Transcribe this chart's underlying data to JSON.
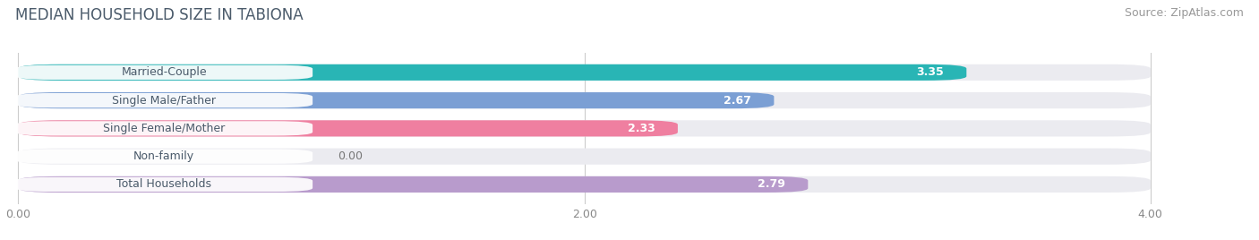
{
  "title": "MEDIAN HOUSEHOLD SIZE IN TABIONA",
  "source": "Source: ZipAtlas.com",
  "categories": [
    "Married-Couple",
    "Single Male/Father",
    "Single Female/Mother",
    "Non-family",
    "Total Households"
  ],
  "values": [
    3.35,
    2.67,
    2.33,
    0.0,
    2.79
  ],
  "bar_colors": [
    "#29b5b5",
    "#7b9fd4",
    "#ef7fa0",
    "#f5c9a0",
    "#b89bcc"
  ],
  "bar_bg_color": "#ebebf0",
  "xlim_data": [
    0,
    4.0
  ],
  "xticks": [
    0.0,
    2.0,
    4.0
  ],
  "title_color": "#4a5a6a",
  "source_color": "#999999",
  "title_fontsize": 12,
  "source_fontsize": 9,
  "bar_label_fontsize": 9,
  "category_fontsize": 9,
  "tick_fontsize": 9,
  "bar_height": 0.58,
  "bar_gap": 1.0
}
